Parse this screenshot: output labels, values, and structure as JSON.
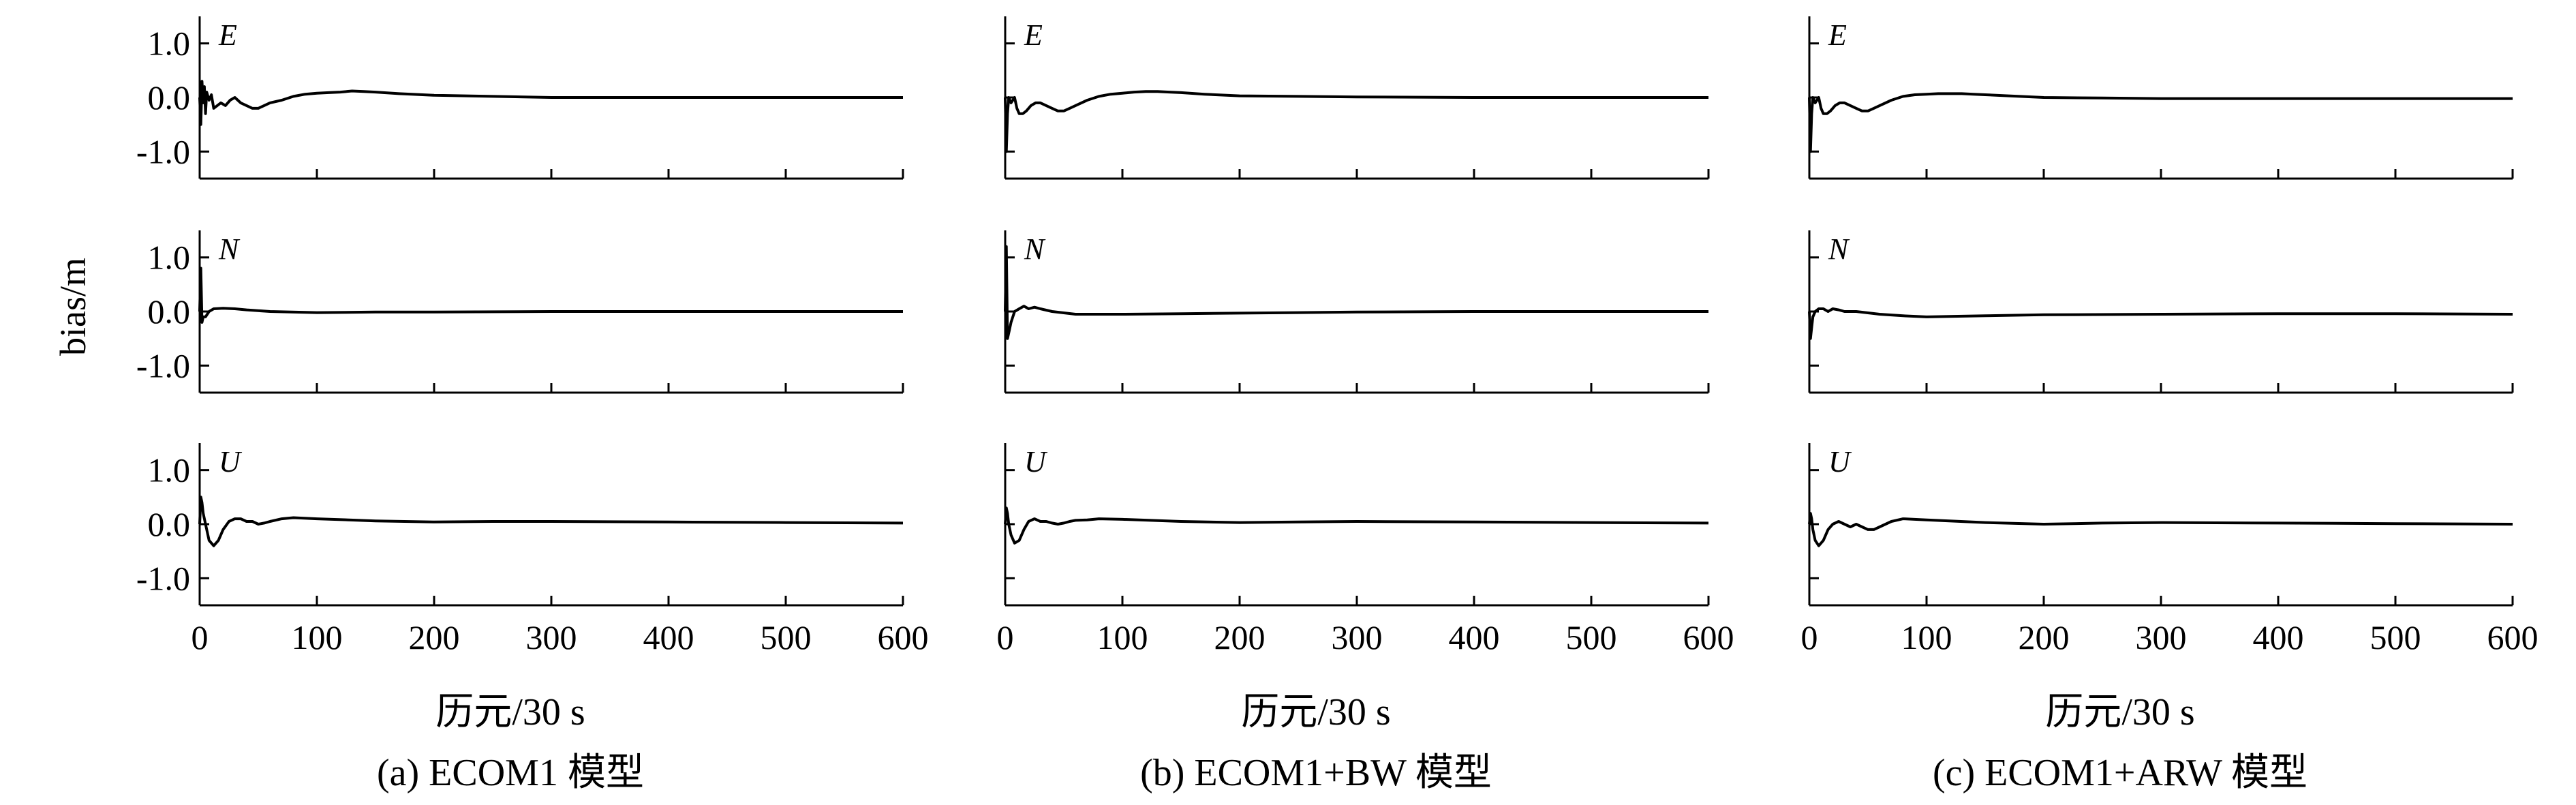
{
  "figure": {
    "ylabel": "bias/m",
    "xlabel": "历元/30 s",
    "y_ticks": [
      "1.0",
      "0.0",
      "-1.0"
    ],
    "x_ticks": [
      "0",
      "100",
      "200",
      "300",
      "400",
      "500",
      "600"
    ],
    "line_color": "#000000"
  },
  "chart_data": [
    {
      "type": "line",
      "caption": "(a) ECOM1 模型",
      "xlim": [
        0,
        600
      ],
      "ylim": [
        -1.5,
        1.5
      ],
      "grid": false,
      "series": [
        {
          "component": "E",
          "x": [
            0,
            1,
            2,
            3,
            4,
            5,
            6,
            8,
            10,
            12,
            15,
            18,
            22,
            26,
            30,
            35,
            40,
            45,
            50,
            55,
            60,
            70,
            80,
            90,
            100,
            110,
            120,
            130,
            140,
            150,
            170,
            200,
            250,
            300,
            400,
            500,
            600
          ],
          "y": [
            0.0,
            -0.5,
            0.3,
            -0.1,
            0.2,
            -0.3,
            0.1,
            -0.05,
            0.05,
            -0.2,
            -0.15,
            -0.1,
            -0.15,
            -0.05,
            0.0,
            -0.1,
            -0.15,
            -0.2,
            -0.2,
            -0.15,
            -0.1,
            -0.05,
            0.02,
            0.06,
            0.08,
            0.09,
            0.1,
            0.12,
            0.11,
            0.1,
            0.07,
            0.04,
            0.02,
            0.0,
            0.0,
            0.0,
            0.0
          ]
        },
        {
          "component": "N",
          "x": [
            0,
            1,
            2,
            3,
            5,
            8,
            12,
            20,
            30,
            40,
            60,
            100,
            150,
            200,
            300,
            400,
            500,
            600
          ],
          "y": [
            0.0,
            0.8,
            -0.2,
            -0.1,
            -0.1,
            0.0,
            0.05,
            0.06,
            0.05,
            0.03,
            0.0,
            -0.02,
            -0.01,
            -0.01,
            0.0,
            0.0,
            0.0,
            0.0
          ]
        },
        {
          "component": "U",
          "x": [
            0,
            1,
            2,
            3,
            5,
            8,
            12,
            16,
            20,
            25,
            30,
            35,
            40,
            45,
            50,
            55,
            60,
            70,
            80,
            100,
            150,
            200,
            250,
            300,
            400,
            500,
            600
          ],
          "y": [
            0.0,
            0.5,
            0.4,
            0.2,
            0.0,
            -0.3,
            -0.4,
            -0.3,
            -0.1,
            0.05,
            0.1,
            0.1,
            0.05,
            0.05,
            0.0,
            0.02,
            0.05,
            0.1,
            0.12,
            0.1,
            0.06,
            0.04,
            0.05,
            0.05,
            0.04,
            0.03,
            0.02
          ]
        }
      ]
    },
    {
      "type": "line",
      "caption": "(b) ECOM1+BW 模型",
      "xlim": [
        0,
        600
      ],
      "ylim": [
        -1.5,
        1.5
      ],
      "grid": false,
      "series": [
        {
          "component": "E",
          "x": [
            0,
            1,
            2,
            3,
            5,
            8,
            10,
            12,
            15,
            18,
            22,
            26,
            30,
            35,
            40,
            45,
            50,
            55,
            60,
            70,
            80,
            90,
            100,
            110,
            120,
            130,
            140,
            150,
            170,
            200,
            250,
            300,
            400,
            500,
            600
          ],
          "y": [
            0.0,
            -1.0,
            -0.3,
            0.0,
            -0.1,
            0.0,
            -0.2,
            -0.3,
            -0.3,
            -0.25,
            -0.15,
            -0.1,
            -0.1,
            -0.15,
            -0.2,
            -0.25,
            -0.25,
            -0.2,
            -0.15,
            -0.05,
            0.02,
            0.06,
            0.08,
            0.1,
            0.11,
            0.11,
            0.1,
            0.09,
            0.06,
            0.03,
            0.02,
            0.01,
            0.0,
            0.0,
            0.0
          ]
        },
        {
          "component": "N",
          "x": [
            0,
            1,
            2,
            3,
            5,
            8,
            12,
            16,
            20,
            25,
            30,
            40,
            60,
            80,
            100,
            150,
            200,
            300,
            400,
            500,
            600
          ],
          "y": [
            0.0,
            1.2,
            -0.5,
            -0.4,
            -0.2,
            0.0,
            0.05,
            0.1,
            0.05,
            0.08,
            0.05,
            0.0,
            -0.05,
            -0.05,
            -0.05,
            -0.04,
            -0.03,
            -0.01,
            0.0,
            0.0,
            0.0
          ]
        },
        {
          "component": "U",
          "x": [
            0,
            1,
            2,
            3,
            5,
            8,
            12,
            16,
            20,
            25,
            30,
            35,
            40,
            45,
            50,
            55,
            60,
            70,
            80,
            100,
            150,
            200,
            250,
            300,
            400,
            500,
            600
          ],
          "y": [
            0.0,
            0.3,
            0.2,
            0.0,
            -0.2,
            -0.35,
            -0.3,
            -0.1,
            0.05,
            0.1,
            0.05,
            0.05,
            0.02,
            0.0,
            0.02,
            0.05,
            0.07,
            0.08,
            0.1,
            0.09,
            0.05,
            0.03,
            0.04,
            0.05,
            0.04,
            0.03,
            0.02
          ]
        }
      ]
    },
    {
      "type": "line",
      "caption": "(c) ECOM1+ARW 模型",
      "xlim": [
        0,
        600
      ],
      "ylim": [
        -1.5,
        1.5
      ],
      "grid": false,
      "series": [
        {
          "component": "E",
          "x": [
            0,
            1,
            2,
            3,
            5,
            8,
            10,
            12,
            15,
            18,
            22,
            26,
            30,
            35,
            40,
            45,
            50,
            55,
            60,
            70,
            80,
            90,
            100,
            110,
            120,
            130,
            140,
            150,
            170,
            200,
            250,
            300,
            400,
            500,
            600
          ],
          "y": [
            0.0,
            -1.0,
            -0.3,
            0.0,
            -0.1,
            0.0,
            -0.2,
            -0.3,
            -0.3,
            -0.25,
            -0.15,
            -0.1,
            -0.1,
            -0.15,
            -0.2,
            -0.25,
            -0.25,
            -0.2,
            -0.15,
            -0.05,
            0.02,
            0.05,
            0.06,
            0.07,
            0.07,
            0.07,
            0.06,
            0.05,
            0.03,
            0.0,
            -0.01,
            -0.02,
            -0.02,
            -0.02,
            -0.02
          ]
        },
        {
          "component": "N",
          "x": [
            0,
            1,
            2,
            3,
            5,
            8,
            12,
            16,
            20,
            25,
            30,
            40,
            60,
            80,
            100,
            150,
            200,
            300,
            400,
            500,
            600
          ],
          "y": [
            0.0,
            -0.5,
            -0.3,
            -0.1,
            0.0,
            0.05,
            0.05,
            0.0,
            0.05,
            0.03,
            0.0,
            0.0,
            -0.05,
            -0.08,
            -0.1,
            -0.08,
            -0.06,
            -0.05,
            -0.04,
            -0.04,
            -0.05
          ]
        },
        {
          "component": "U",
          "x": [
            0,
            1,
            2,
            3,
            5,
            8,
            12,
            16,
            20,
            25,
            30,
            35,
            40,
            45,
            50,
            55,
            60,
            70,
            80,
            100,
            150,
            200,
            250,
            300,
            400,
            500,
            600
          ],
          "y": [
            0.0,
            0.2,
            0.1,
            -0.1,
            -0.3,
            -0.4,
            -0.3,
            -0.1,
            0.0,
            0.05,
            0.0,
            -0.05,
            0.0,
            -0.05,
            -0.1,
            -0.1,
            -0.05,
            0.05,
            0.1,
            0.08,
            0.03,
            0.0,
            0.02,
            0.03,
            0.02,
            0.01,
            0.0
          ]
        }
      ]
    }
  ]
}
